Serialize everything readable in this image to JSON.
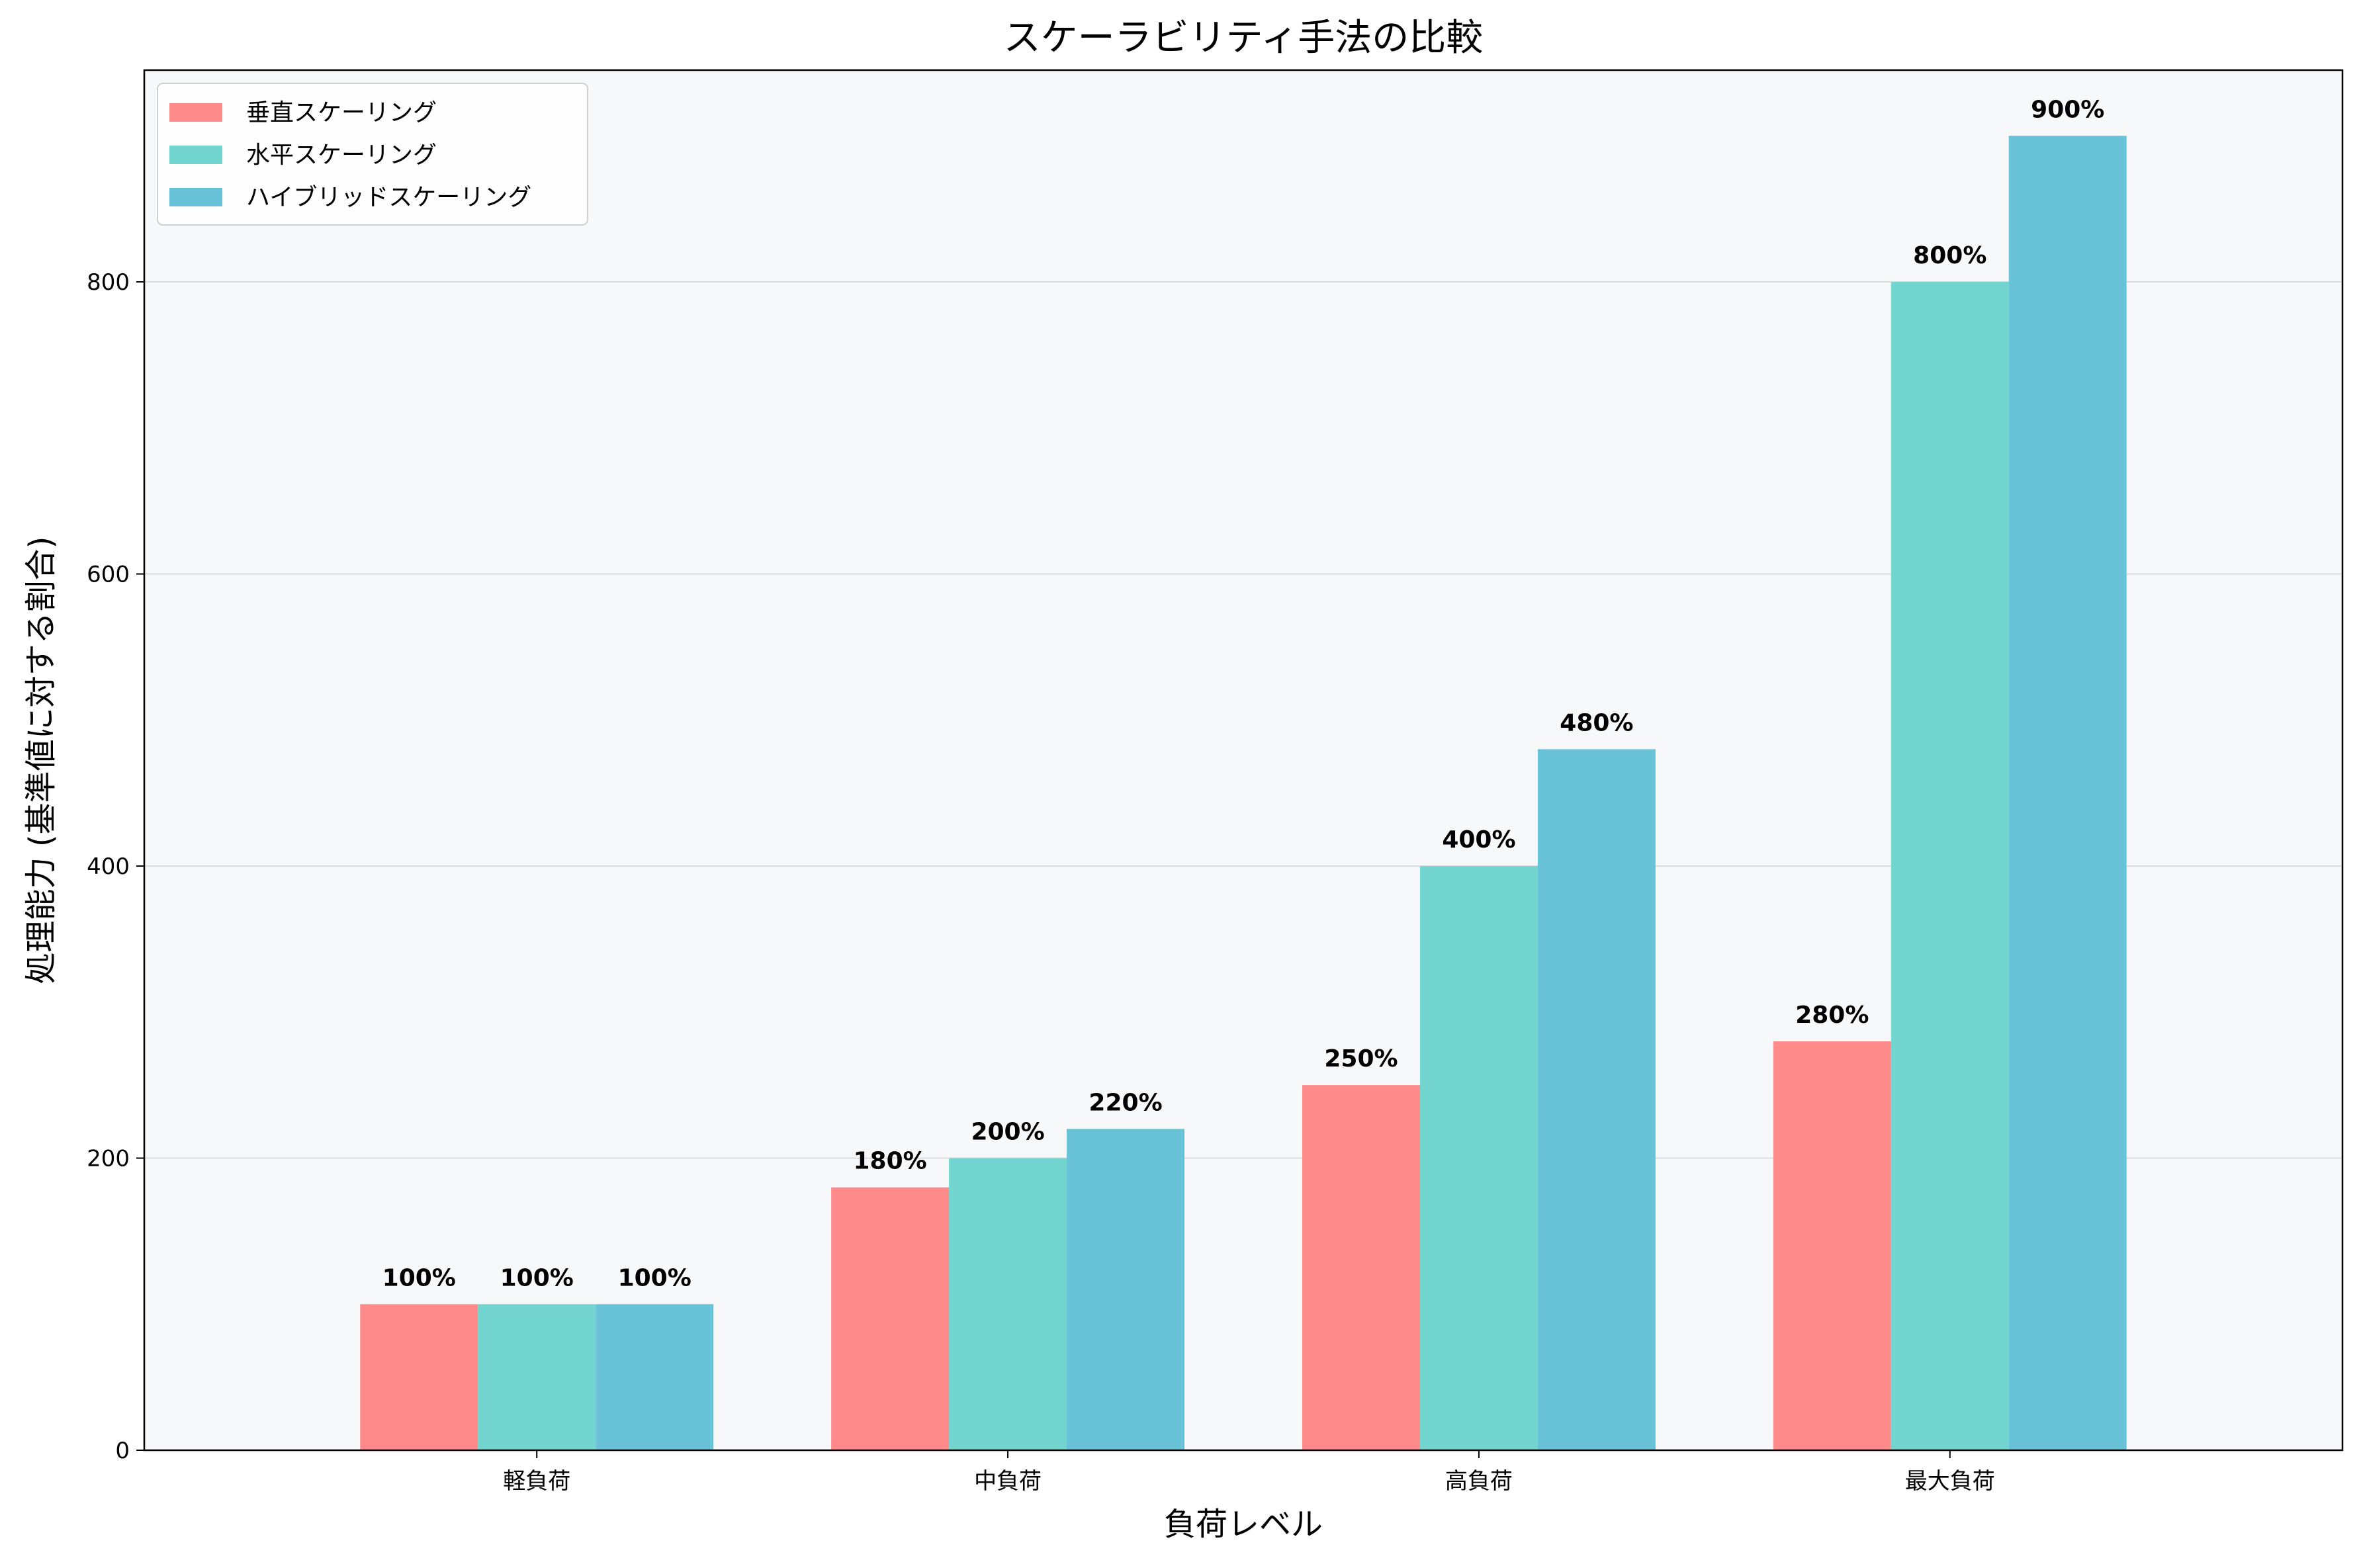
{
  "chart_data": {
    "type": "bar",
    "title": "スケーラビリティ手法の比較",
    "xlabel": "負荷レベル",
    "ylabel": "処理能力 (基準値に対する割合)",
    "categories": [
      "軽負荷",
      "中負荷",
      "高負荷",
      "最大負荷"
    ],
    "series": [
      {
        "name": "垂直スケーリング",
        "color": "#ff8a8a",
        "values": [
          100,
          180,
          250,
          280
        ],
        "labels": [
          "100%",
          "180%",
          "250%",
          "280%"
        ]
      },
      {
        "name": "水平スケーリング",
        "color": "#73d5cf",
        "values": [
          100,
          200,
          400,
          800
        ],
        "labels": [
          "100%",
          "200%",
          "400%",
          "800%"
        ]
      },
      {
        "name": "ハイブリッドスケーリング",
        "color": "#68c3d8",
        "values": [
          100,
          220,
          480,
          900
        ],
        "labels": [
          "100%",
          "220%",
          "480%",
          "900%"
        ]
      }
    ],
    "ylim": [
      0,
      945
    ],
    "yticks": [
      0,
      200,
      400,
      600,
      800
    ],
    "grid": "y",
    "legend": "top-left",
    "plot_background": "#f7f8fa"
  }
}
